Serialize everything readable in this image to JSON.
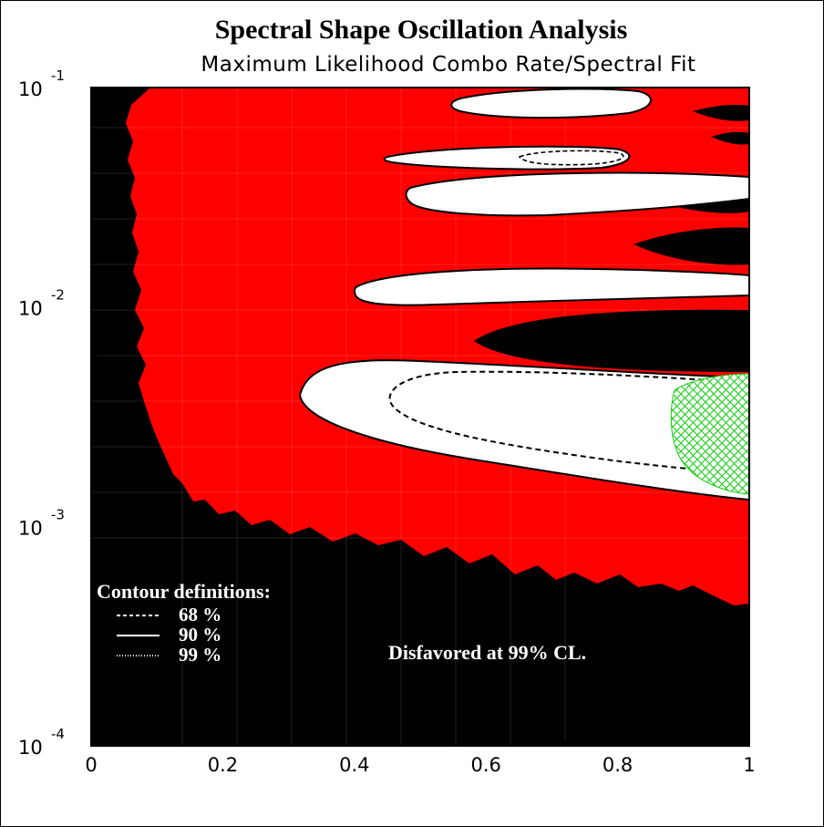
{
  "chart_data": {
    "type": "heatmap",
    "title": "Spectral Shape Oscillation Analysis",
    "subtitle": "Maximum Likelihood Combo Rate/Spectral Fit",
    "x_ticks": [
      "0",
      "0.2",
      "0.4",
      "0.6",
      "0.8",
      "1"
    ],
    "x_tick_values": [
      0,
      0.2,
      0.4,
      0.6,
      0.8,
      1.0
    ],
    "y_ticks": [
      {
        "base": "10",
        "exp": "-1",
        "value": 0.1
      },
      {
        "base": "10",
        "exp": "-2",
        "value": 0.01
      },
      {
        "base": "10",
        "exp": "-3",
        "value": 0.001
      },
      {
        "base": "10",
        "exp": "-4",
        "value": 0.0001
      }
    ],
    "xlim": [
      0,
      1
    ],
    "ylim": [
      0.0001,
      0.1
    ],
    "y_scale": "log",
    "colors": {
      "disfavored": "#000000",
      "excluded_region": "#ff0000",
      "allowed": "#ffffff",
      "hatched": "#00cc00"
    },
    "legend": {
      "heading": "Contour definitions:",
      "entries": [
        {
          "style": "dashed",
          "label": "68 %"
        },
        {
          "style": "solid",
          "label": "90 %"
        },
        {
          "style": "dotted",
          "label": "99 %"
        }
      ]
    },
    "annotation": "Disfavored at 99% CL.",
    "allowed_regions_90": [
      {
        "x_min": 0.32,
        "x_max": 1.0,
        "y_center": 0.0028,
        "note": "main lower island"
      },
      {
        "x_min": 0.4,
        "x_max": 1.0,
        "y_center": 0.0105,
        "note": "middle island"
      },
      {
        "x_min": 0.49,
        "x_max": 1.0,
        "y_center": 0.033,
        "note": "upper island"
      },
      {
        "x_min": 0.45,
        "x_max": 0.8,
        "y_center": 0.055,
        "note": "upper island"
      },
      {
        "x_min": 0.5,
        "x_max": 0.82,
        "y_center": 0.088,
        "note": "top island"
      }
    ],
    "contours_68": [
      {
        "x_min": 0.46,
        "x_max": 1.0,
        "y_center": 0.0026
      },
      {
        "x_min": 0.61,
        "x_max": 0.7,
        "y_center": 0.055
      }
    ],
    "hatched_region": {
      "x_min": 0.88,
      "x_max": 1.0,
      "y_min": 0.00135,
      "y_max": 0.0045
    }
  }
}
